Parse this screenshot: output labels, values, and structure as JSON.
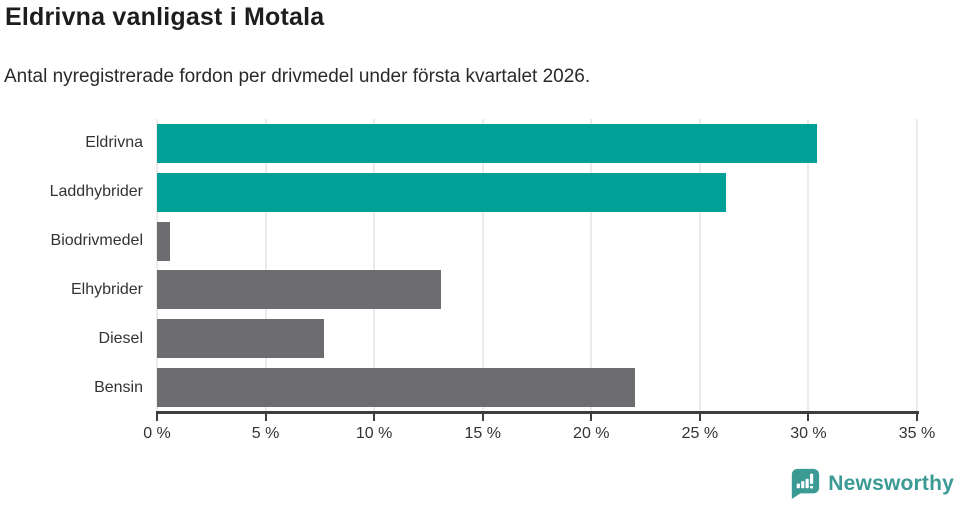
{
  "header": {
    "title": "Eldrivna vanligast i Motala",
    "subtitle": "Antal nyregistrerade fordon per drivmedel under första kvartalet 2026."
  },
  "footer": {
    "brand": "Newsworthy",
    "brand_color": "#3b9a94",
    "logo_icon": "bar-chart-speech-bubble"
  },
  "chart_data": {
    "type": "bar",
    "orientation": "horizontal",
    "title": "Eldrivna vanligast i Motala",
    "subtitle": "Antal nyregistrerade fordon per drivmedel under första kvartalet 2026.",
    "categories": [
      "Eldrivna",
      "Laddhybrider",
      "Biodrivmedel",
      "Elhybrider",
      "Diesel",
      "Bensin"
    ],
    "values": [
      30.4,
      26.2,
      0.6,
      13.1,
      7.7,
      22.0
    ],
    "unit": "%",
    "bar_colors": [
      "#00a096",
      "#00a096",
      "#6d6c70",
      "#6d6c70",
      "#6d6c70",
      "#6d6c70"
    ],
    "highlight_color": "#00a096",
    "default_color": "#6d6c70",
    "xlim": [
      0,
      35
    ],
    "xticks": [
      0,
      5,
      10,
      15,
      20,
      25,
      30,
      35
    ],
    "xtick_labels": [
      "0 %",
      "5 %",
      "10 %",
      "15 %",
      "20 %",
      "25 %",
      "30 %",
      "35 %"
    ],
    "grid": true,
    "legend": false
  }
}
